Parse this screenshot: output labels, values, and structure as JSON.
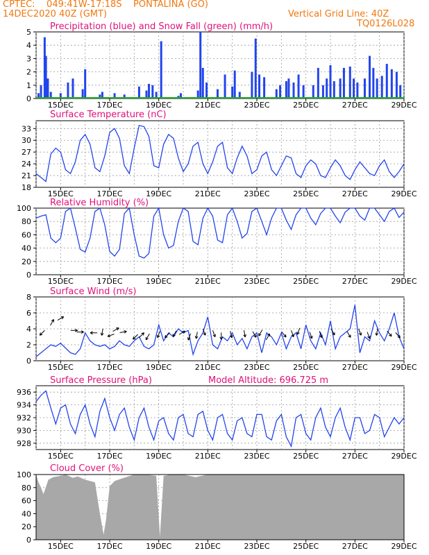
{
  "header": {
    "line1": "CPTEC:    049:41W-17:18S    PONTALINA (GO)",
    "line2": "14DEC2020 40Z (GMT)",
    "grid_note": "Vertical Grid Line: 40Z",
    "code": "TQ0126L028"
  },
  "colors": {
    "header": "#f07810",
    "title": "#e0107a",
    "series": "#2244ee",
    "snow": "#22aa22",
    "cloud": "#a8a8a8",
    "arrow": "#000000"
  },
  "date_labels": [
    "15DEC",
    "17DEC",
    "19DEC",
    "21DEC",
    "23DEC",
    "25DEC",
    "27DEC",
    "29DEC"
  ],
  "chart_data": [
    {
      "type": "bar",
      "title": "Precipitation (blue) and Snow Fall (green) (mm/h)",
      "ylim": [
        0,
        5
      ],
      "yticks": [
        "0",
        "1",
        "2",
        "3",
        "4",
        "5"
      ],
      "x_unit": "days since 14DEC2020 00Z",
      "series": [
        {
          "name": "Precipitation",
          "x": [
            0.1,
            0.2,
            0.35,
            0.4,
            0.48,
            0.6,
            1.0,
            1.3,
            1.5,
            1.9,
            2.0,
            2.6,
            2.7,
            3.2,
            3.6,
            4.2,
            4.5,
            4.6,
            4.75,
            4.9,
            5.1,
            5.8,
            5.9,
            6.6,
            6.7,
            6.8,
            6.95,
            7.4,
            7.7,
            8.0,
            8.1,
            8.3,
            8.8,
            8.95,
            9.1,
            9.3,
            9.8,
            9.95,
            10.2,
            10.3,
            10.5,
            10.7,
            10.9,
            11.3,
            11.5,
            11.7,
            11.85,
            12.0,
            12.15,
            12.4,
            12.55,
            12.8,
            12.95,
            13.1,
            13.4,
            13.6,
            13.75,
            13.9,
            14.1,
            14.3,
            14.5,
            14.7,
            14.85
          ],
          "values": [
            0.4,
            1.0,
            4.6,
            3.2,
            1.5,
            0.5,
            0.4,
            1.2,
            1.5,
            0.7,
            2.2,
            0.3,
            0.5,
            0.4,
            0.3,
            0.9,
            0.6,
            1.1,
            1.0,
            0.5,
            4.3,
            0.2,
            0.4,
            0.6,
            5.0,
            2.3,
            1.2,
            0.7,
            1.8,
            0.9,
            2.1,
            0.5,
            2.0,
            4.5,
            1.8,
            1.6,
            0.7,
            1.0,
            1.3,
            1.5,
            1.2,
            1.8,
            1.0,
            1.0,
            2.3,
            1.0,
            1.5,
            2.5,
            1.3,
            1.5,
            2.3,
            2.4,
            1.5,
            1.2,
            1.5,
            3.2,
            2.3,
            1.5,
            1.7,
            2.6,
            2.2,
            2.0,
            1.0
          ]
        },
        {
          "name": "Snow Fall",
          "x": [
            0,
            15
          ],
          "values": [
            0,
            0
          ]
        }
      ]
    },
    {
      "type": "line",
      "title": "Surface Temperature (nC)",
      "ylim": [
        18,
        35
      ],
      "yticks": [
        "18",
        "21",
        "24",
        "27",
        "30",
        "33"
      ],
      "x_unit": "days since 14DEC2020 00Z",
      "series": [
        {
          "name": "Temperature",
          "x": [
            0.0,
            0.2,
            0.4,
            0.6,
            0.8,
            1.0,
            1.2,
            1.4,
            1.6,
            1.8,
            2.0,
            2.2,
            2.4,
            2.6,
            2.8,
            3.0,
            3.2,
            3.4,
            3.6,
            3.8,
            4.0,
            4.2,
            4.4,
            4.6,
            4.8,
            5.0,
            5.2,
            5.4,
            5.6,
            5.8,
            6.0,
            6.2,
            6.4,
            6.6,
            6.8,
            7.0,
            7.2,
            7.4,
            7.6,
            7.8,
            8.0,
            8.2,
            8.4,
            8.6,
            8.8,
            9.0,
            9.2,
            9.4,
            9.6,
            9.8,
            10.0,
            10.2,
            10.4,
            10.6,
            10.8,
            11.0,
            11.2,
            11.4,
            11.6,
            11.8,
            12.0,
            12.2,
            12.4,
            12.6,
            12.8,
            13.0,
            13.2,
            13.4,
            13.6,
            13.8,
            14.0,
            14.2,
            14.4,
            14.6,
            14.8,
            15.0
          ],
          "values": [
            21.5,
            20.5,
            19.5,
            26.5,
            28.0,
            27.0,
            22.5,
            21.5,
            24.5,
            30.0,
            31.5,
            29.0,
            23.0,
            22.0,
            26.0,
            32.0,
            33.0,
            30.5,
            23.5,
            21.5,
            28.0,
            33.8,
            33.5,
            31.0,
            23.5,
            23.0,
            29.0,
            31.5,
            30.5,
            25.5,
            22.0,
            24.0,
            28.5,
            29.5,
            24.0,
            21.5,
            24.5,
            28.5,
            29.5,
            23.0,
            21.5,
            25.5,
            28.5,
            26.0,
            21.5,
            22.5,
            26.0,
            27.0,
            22.5,
            21.0,
            23.5,
            26.0,
            25.5,
            21.5,
            20.5,
            23.5,
            25.0,
            24.0,
            21.0,
            20.5,
            23.0,
            25.0,
            23.5,
            21.0,
            20.0,
            22.5,
            24.5,
            23.0,
            21.5,
            21.0,
            23.5,
            25.0,
            22.0,
            20.5,
            22.0,
            24.0
          ]
        }
      ]
    },
    {
      "type": "line",
      "title": "Relative Humidity (%)",
      "ylim": [
        0,
        100
      ],
      "yticks": [
        "0",
        "20",
        "40",
        "60",
        "80",
        "100"
      ],
      "x_unit": "days since 14DEC2020 00Z",
      "series": [
        {
          "name": "Relative Humidity",
          "x": [
            0.0,
            0.2,
            0.4,
            0.6,
            0.8,
            1.0,
            1.2,
            1.4,
            1.6,
            1.8,
            2.0,
            2.2,
            2.4,
            2.6,
            2.8,
            3.0,
            3.2,
            3.4,
            3.6,
            3.8,
            4.0,
            4.2,
            4.4,
            4.6,
            4.8,
            5.0,
            5.2,
            5.4,
            5.6,
            5.8,
            6.0,
            6.2,
            6.4,
            6.6,
            6.8,
            7.0,
            7.2,
            7.4,
            7.6,
            7.8,
            8.0,
            8.2,
            8.4,
            8.6,
            8.8,
            9.0,
            9.2,
            9.4,
            9.6,
            9.8,
            10.0,
            10.2,
            10.4,
            10.6,
            10.8,
            11.0,
            11.2,
            11.4,
            11.6,
            11.8,
            12.0,
            12.2,
            12.4,
            12.6,
            12.8,
            13.0,
            13.2,
            13.4,
            13.6,
            13.8,
            14.0,
            14.2,
            14.4,
            14.6,
            14.8,
            15.0
          ],
          "values": [
            85,
            88,
            90,
            55,
            48,
            55,
            95,
            100,
            70,
            38,
            34,
            55,
            95,
            100,
            75,
            35,
            28,
            38,
            92,
            100,
            60,
            28,
            25,
            32,
            88,
            100,
            60,
            40,
            44,
            80,
            100,
            95,
            50,
            45,
            85,
            100,
            88,
            52,
            48,
            90,
            100,
            80,
            55,
            62,
            95,
            100,
            80,
            60,
            85,
            100,
            100,
            82,
            68,
            90,
            100,
            100,
            85,
            75,
            92,
            100,
            100,
            88,
            78,
            94,
            100,
            100,
            88,
            82,
            100,
            100,
            90,
            80,
            95,
            100,
            86,
            94
          ]
        }
      ]
    },
    {
      "type": "line",
      "title": "Surface Wind (m/s)",
      "ylim": [
        0,
        8
      ],
      "yticks": [
        "0",
        "2",
        "4",
        "6",
        "8"
      ],
      "x_unit": "days since 14DEC2020 00Z",
      "series": [
        {
          "name": "Wind Speed",
          "x": [
            0.0,
            0.2,
            0.4,
            0.6,
            0.8,
            1.0,
            1.2,
            1.4,
            1.6,
            1.8,
            2.0,
            2.2,
            2.4,
            2.6,
            2.8,
            3.0,
            3.2,
            3.4,
            3.6,
            3.8,
            4.0,
            4.2,
            4.4,
            4.6,
            4.8,
            5.0,
            5.2,
            5.4,
            5.6,
            5.8,
            6.0,
            6.2,
            6.4,
            6.6,
            6.8,
            7.0,
            7.2,
            7.4,
            7.6,
            7.8,
            8.0,
            8.2,
            8.4,
            8.6,
            8.8,
            9.0,
            9.2,
            9.4,
            9.6,
            9.8,
            10.0,
            10.2,
            10.4,
            10.6,
            10.8,
            11.0,
            11.2,
            11.4,
            11.6,
            11.8,
            12.0,
            12.2,
            12.4,
            12.6,
            12.8,
            13.0,
            13.2,
            13.4,
            13.6,
            13.8,
            14.0,
            14.2,
            14.4,
            14.6,
            14.8,
            15.0
          ],
          "values": [
            0.5,
            1.0,
            1.5,
            2.0,
            1.8,
            2.2,
            1.6,
            1.0,
            0.8,
            1.5,
            3.5,
            2.5,
            2.0,
            1.8,
            2.0,
            1.5,
            1.8,
            2.5,
            2.0,
            1.8,
            2.5,
            3.0,
            1.8,
            1.5,
            2.0,
            4.5,
            2.5,
            3.5,
            3.0,
            4.0,
            3.5,
            3.8,
            0.8,
            2.5,
            3.5,
            5.5,
            2.0,
            1.5,
            3.0,
            2.5,
            3.5,
            2.0,
            2.8,
            1.5,
            3.0,
            3.5,
            1.0,
            3.5,
            3.0,
            2.0,
            3.5,
            1.5,
            3.0,
            3.5,
            1.5,
            4.5,
            2.5,
            1.5,
            3.5,
            2.0,
            5.0,
            1.5,
            3.0,
            3.5,
            4.0,
            7.0,
            1.0,
            3.0,
            2.5,
            5.0,
            3.5,
            2.5,
            4.0,
            6.0,
            3.0,
            1.5
          ]
        }
      ]
    },
    {
      "type": "line",
      "title": "Surface Pressure (hPa)",
      "annotation": "Model Altitude: 696.725 m",
      "ylim": [
        927,
        937
      ],
      "yticks": [
        "928",
        "930",
        "932",
        "934",
        "936"
      ],
      "x_unit": "days since 14DEC2020 00Z",
      "series": [
        {
          "name": "Surface Pressure",
          "x": [
            0.0,
            0.2,
            0.4,
            0.6,
            0.8,
            1.0,
            1.2,
            1.4,
            1.6,
            1.8,
            2.0,
            2.2,
            2.4,
            2.6,
            2.8,
            3.0,
            3.2,
            3.4,
            3.6,
            3.8,
            4.0,
            4.2,
            4.4,
            4.6,
            4.8,
            5.0,
            5.2,
            5.4,
            5.6,
            5.8,
            6.0,
            6.2,
            6.4,
            6.6,
            6.8,
            7.0,
            7.2,
            7.4,
            7.6,
            7.8,
            8.0,
            8.2,
            8.4,
            8.6,
            8.8,
            9.0,
            9.2,
            9.4,
            9.6,
            9.8,
            10.0,
            10.2,
            10.4,
            10.6,
            10.8,
            11.0,
            11.2,
            11.4,
            11.6,
            11.8,
            12.0,
            12.2,
            12.4,
            12.6,
            12.8,
            13.0,
            13.2,
            13.4,
            13.6,
            13.8,
            14.0,
            14.2,
            14.4,
            14.6,
            14.8,
            15.0
          ],
          "values": [
            934.5,
            935.5,
            936.2,
            933.5,
            931.0,
            933.5,
            934.0,
            931.0,
            929.5,
            932.5,
            934.0,
            931.0,
            929.0,
            933.0,
            935.0,
            932.0,
            930.0,
            932.5,
            933.5,
            930.5,
            928.5,
            932.0,
            933.5,
            930.5,
            928.5,
            931.5,
            932.0,
            929.5,
            928.5,
            932.0,
            932.5,
            929.5,
            929.0,
            932.5,
            933.0,
            930.0,
            928.5,
            932.0,
            932.5,
            929.5,
            928.5,
            931.5,
            932.0,
            929.5,
            929.0,
            932.5,
            932.5,
            929.0,
            928.5,
            931.5,
            932.5,
            929.0,
            927.5,
            932.0,
            932.5,
            929.5,
            928.5,
            932.0,
            933.5,
            930.5,
            929.0,
            932.0,
            933.5,
            930.5,
            928.5,
            932.0,
            932.0,
            929.5,
            930.0,
            932.5,
            932.0,
            929.0,
            930.5,
            932.0,
            931.0,
            932.0
          ]
        }
      ]
    },
    {
      "type": "area",
      "title": "Cloud Cover (%)",
      "ylim": [
        0,
        100
      ],
      "yticks": [
        "0",
        "20",
        "40",
        "60",
        "80",
        "100"
      ],
      "x_unit": "days since 14DEC2020 00Z",
      "series": [
        {
          "name": "Cloud Cover",
          "x": [
            0.0,
            0.1,
            0.2,
            0.3,
            0.5,
            0.7,
            1.0,
            1.2,
            1.5,
            1.7,
            2.0,
            2.4,
            2.6,
            2.75,
            2.85,
            3.0,
            3.2,
            3.5,
            4.0,
            4.5,
            4.9,
            5.05,
            5.2,
            5.5,
            6.0,
            6.5,
            7.0,
            7.5,
            8.0,
            8.5,
            9.0,
            9.5,
            10.0,
            10.5,
            11.0,
            11.5,
            12.0,
            12.5,
            13.0,
            13.5,
            14.0,
            14.5,
            15.0
          ],
          "values": [
            100,
            88,
            80,
            70,
            92,
            96,
            98,
            100,
            95,
            97,
            92,
            88,
            40,
            8,
            30,
            82,
            90,
            94,
            100,
            100,
            98,
            5,
            98,
            100,
            100,
            96,
            100,
            100,
            100,
            100,
            100,
            100,
            100,
            100,
            100,
            100,
            100,
            100,
            100,
            100,
            100,
            100,
            100
          ]
        }
      ]
    }
  ],
  "wind_arrows": [
    {
      "x": 0.25,
      "y": 3.5,
      "dir": 225
    },
    {
      "x": 0.65,
      "y": 4.8,
      "dir": 30
    },
    {
      "x": 1.0,
      "y": 5.3,
      "dir": 60
    },
    {
      "x": 1.55,
      "y": 3.8,
      "dir": 90
    },
    {
      "x": 1.8,
      "y": 3.6,
      "dir": 90
    },
    {
      "x": 2.35,
      "y": 3.5,
      "dir": 270
    },
    {
      "x": 2.7,
      "y": 3.6,
      "dir": 190
    },
    {
      "x": 3.05,
      "y": 3.2,
      "dir": 250
    },
    {
      "x": 3.25,
      "y": 3.9,
      "dir": 60
    },
    {
      "x": 3.55,
      "y": 3.6,
      "dir": 80
    },
    {
      "x": 4.05,
      "y": 3.0,
      "dir": 225
    },
    {
      "x": 4.3,
      "y": 3.2,
      "dir": 45
    },
    {
      "x": 4.55,
      "y": 3.0,
      "dir": 210
    },
    {
      "x": 5.0,
      "y": 3.3,
      "dir": 200
    },
    {
      "x": 5.35,
      "y": 3.2,
      "dir": 225
    },
    {
      "x": 5.65,
      "y": 3.4,
      "dir": 210
    },
    {
      "x": 5.95,
      "y": 3.5,
      "dir": 60
    },
    {
      "x": 6.25,
      "y": 3.0,
      "dir": 200
    },
    {
      "x": 6.55,
      "y": 3.2,
      "dir": 190
    },
    {
      "x": 6.85,
      "y": 3.6,
      "dir": 160
    },
    {
      "x": 7.25,
      "y": 3.4,
      "dir": 160
    },
    {
      "x": 7.55,
      "y": 3.1,
      "dir": 180
    },
    {
      "x": 7.95,
      "y": 3.3,
      "dir": 165
    },
    {
      "x": 8.5,
      "y": 3.4,
      "dir": 170
    },
    {
      "x": 8.9,
      "y": 3.3,
      "dir": 150
    },
    {
      "x": 9.15,
      "y": 3.5,
      "dir": 210
    },
    {
      "x": 9.45,
      "y": 3.0,
      "dir": 30
    },
    {
      "x": 10.1,
      "y": 3.3,
      "dir": 140
    },
    {
      "x": 10.45,
      "y": 3.4,
      "dir": 160
    },
    {
      "x": 10.7,
      "y": 3.7,
      "dir": 200
    },
    {
      "x": 11.2,
      "y": 3.2,
      "dir": 160
    },
    {
      "x": 11.6,
      "y": 3.3,
      "dir": 160
    },
    {
      "x": 12.1,
      "y": 3.6,
      "dir": 150
    },
    {
      "x": 12.75,
      "y": 3.3,
      "dir": 150
    },
    {
      "x": 13.2,
      "y": 3.6,
      "dir": 160
    },
    {
      "x": 13.55,
      "y": 3.2,
      "dir": 160
    },
    {
      "x": 13.9,
      "y": 3.6,
      "dir": 190
    },
    {
      "x": 14.4,
      "y": 3.4,
      "dir": 140
    },
    {
      "x": 14.75,
      "y": 3.2,
      "dir": 140
    }
  ]
}
